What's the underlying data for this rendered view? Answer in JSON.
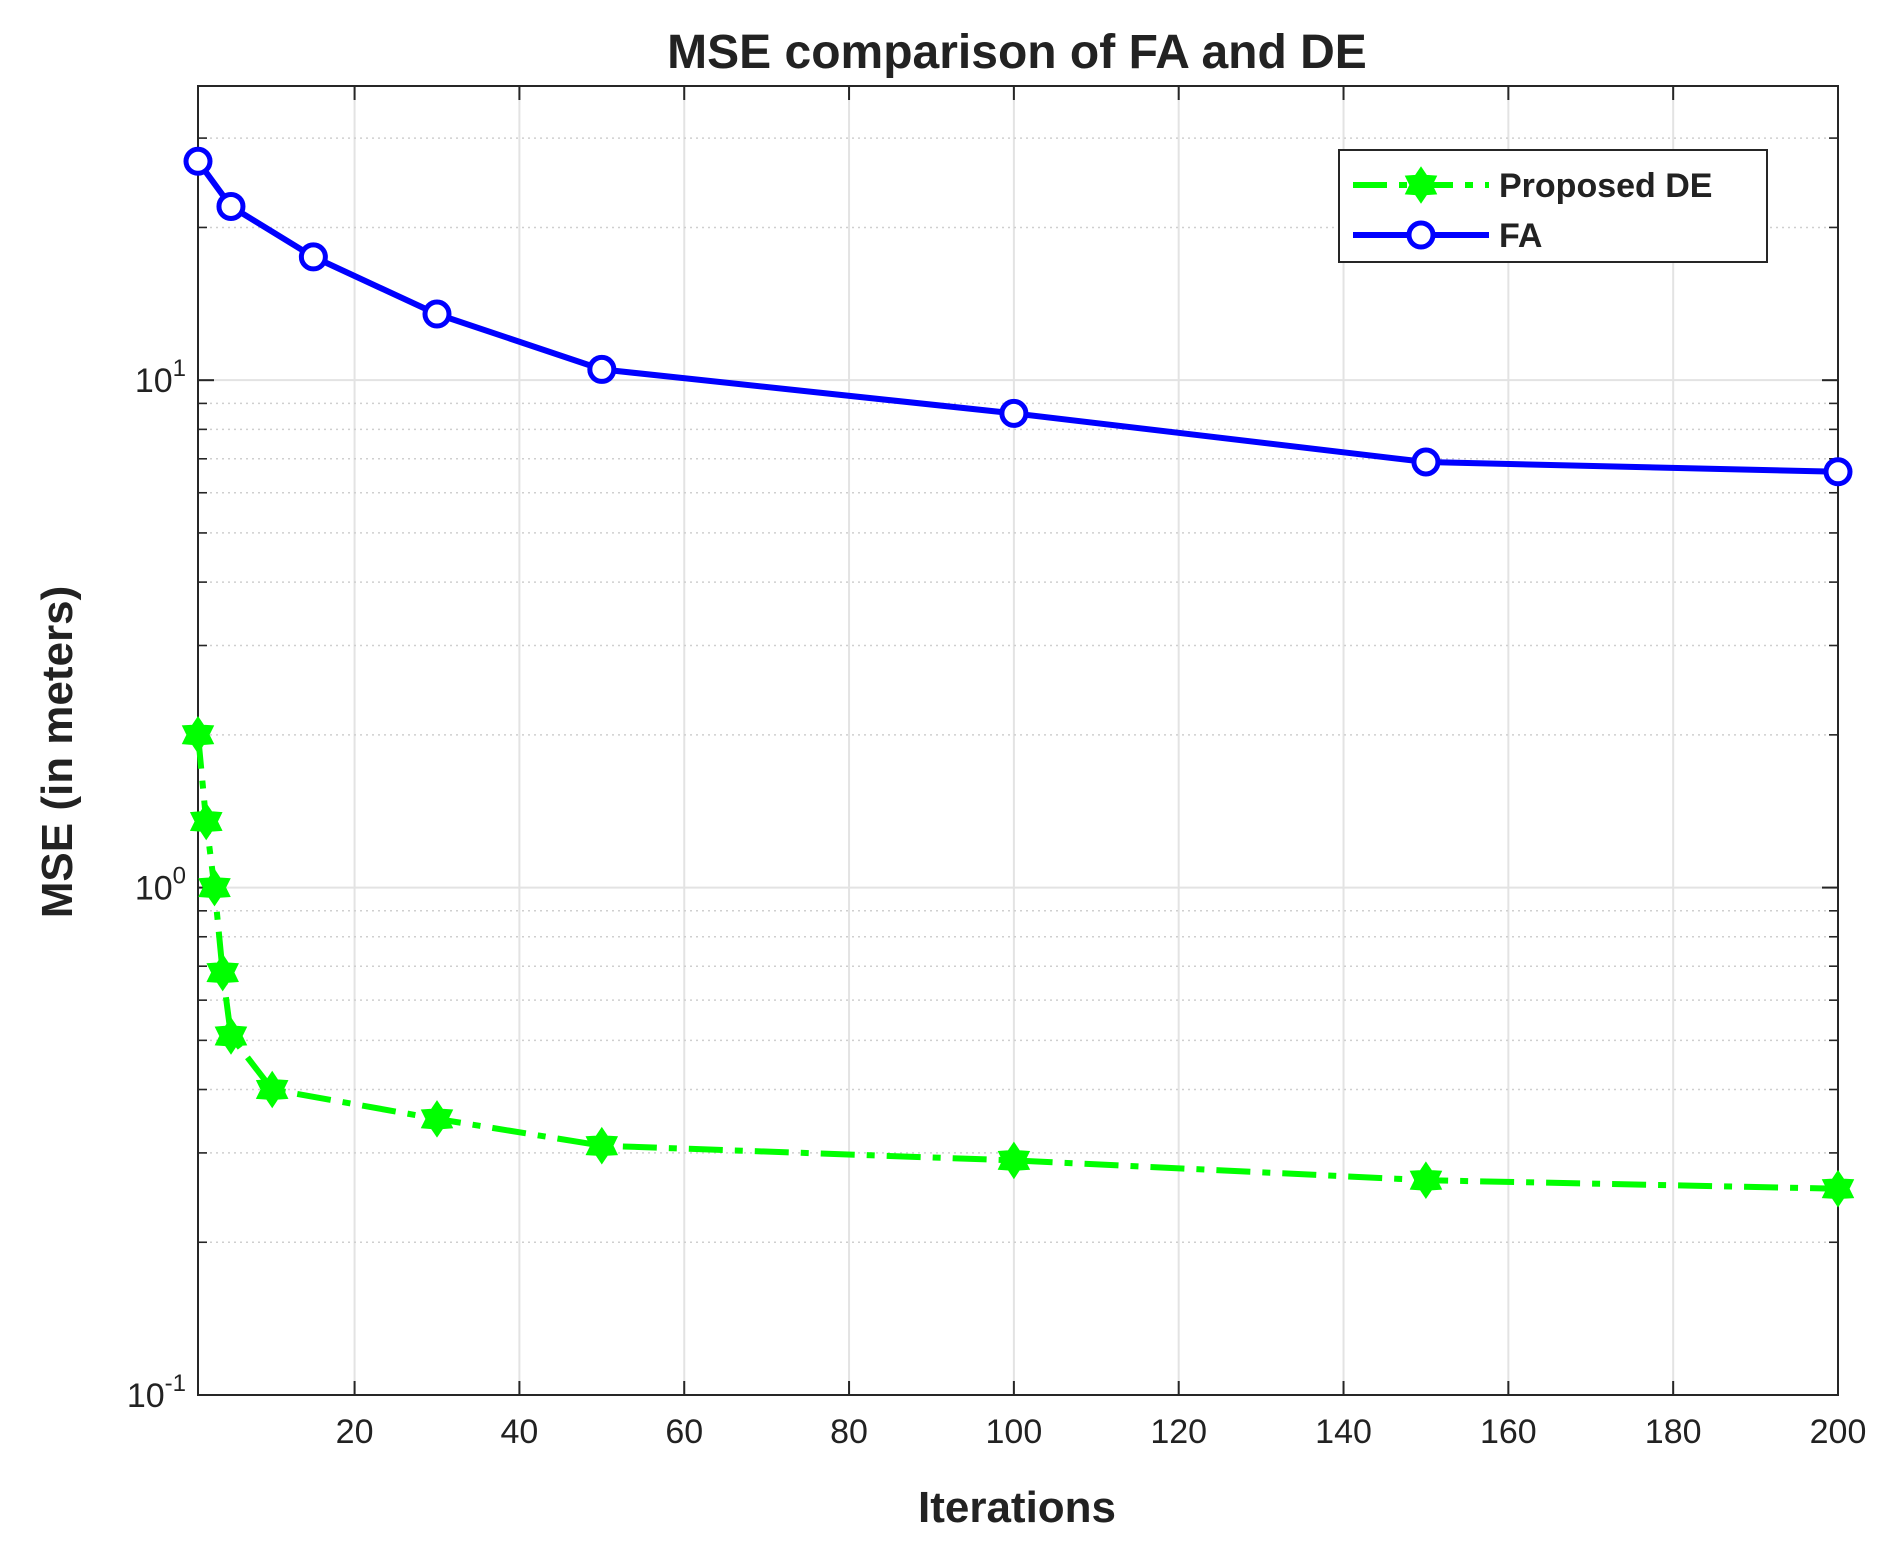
{
  "chart_data": {
    "type": "line",
    "title": "MSE comparison of FA and DE",
    "xlabel": "Iterations",
    "ylabel": "MSE (in meters)",
    "yscale": "log",
    "xlim": [
      1,
      200
    ],
    "ylim": [
      0.1,
      38
    ],
    "grid": true,
    "x_ticks": [
      20,
      40,
      60,
      80,
      100,
      120,
      140,
      160,
      180,
      200
    ],
    "x_tick_labels": [
      "20",
      "40",
      "60",
      "80",
      "100",
      "120",
      "140",
      "160",
      "180",
      "200"
    ],
    "y_ticks": [
      {
        "value": 10,
        "base": "10",
        "exp": "1"
      },
      {
        "value": 1,
        "base": "10",
        "exp": "0"
      },
      {
        "value": 0.1,
        "base": "10",
        "exp": "-1"
      }
    ],
    "legend_position": "top-right",
    "series": [
      {
        "name": "Proposed DE",
        "color": "#00ff00",
        "line_style": "dash-dot",
        "marker": "hexagram",
        "x": [
          1,
          2,
          3,
          4,
          5,
          10,
          30,
          50,
          100,
          150,
          200
        ],
        "y": [
          2.0,
          1.35,
          1.0,
          0.68,
          0.51,
          0.4,
          0.35,
          0.31,
          0.29,
          0.265,
          0.255
        ]
      },
      {
        "name": "FA",
        "color": "#0000ff",
        "line_style": "solid",
        "marker": "circle",
        "x": [
          1,
          5,
          15,
          30,
          50,
          100,
          150,
          200
        ],
        "y": [
          27,
          22,
          17.5,
          13.5,
          10.5,
          8.6,
          6.9,
          6.6
        ]
      }
    ]
  }
}
